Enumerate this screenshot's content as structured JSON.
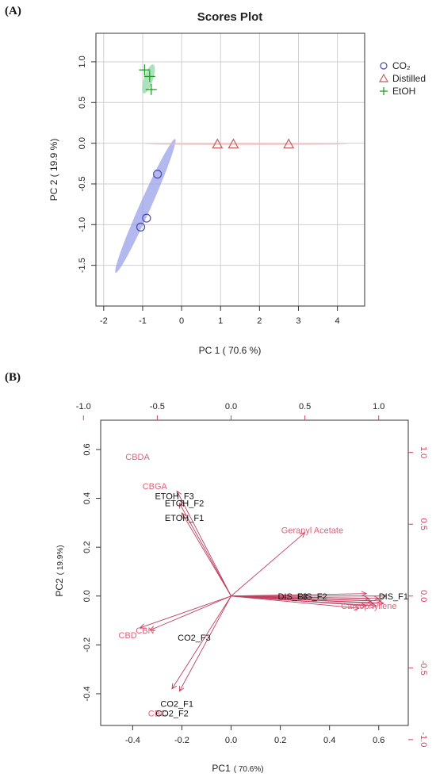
{
  "panel_a": {
    "panel_label": "(A)",
    "colors": {
      "co2": "#4a4ab0",
      "distilled": "#c06060",
      "etoh": "#2a9a2a",
      "co2_ellipse": "#9aa0e8",
      "etoh_ellipse": "#8fd8a8",
      "distilled_ellipse": "#f0c0c0",
      "grid": "#cfcfcf"
    }
  },
  "panel_b": {
    "panel_label": "(B)",
    "colors": {
      "arrow": "#c04060",
      "var_text": "#e0607a",
      "obs_text": "#111111",
      "right_ticks": "#d6405a"
    }
  },
  "chart_data": [
    {
      "type": "scatter",
      "title": "Scores Plot",
      "xlabel": "PC 1 ( 70.6 %)",
      "ylabel": "PC 2 ( 19.9 %)",
      "xlim": [
        -2.2,
        4.7
      ],
      "ylim": [
        -2.0,
        1.35
      ],
      "xticks": [
        -2,
        -1,
        0,
        1,
        2,
        3,
        4
      ],
      "yticks": [
        1.0,
        0.5,
        0.0,
        -0.5,
        -1.0,
        -1.5
      ],
      "xtick_labels": [
        "-2",
        "-1",
        "0",
        "1",
        "2",
        "3",
        "4"
      ],
      "ytick_labels": [
        "1.0",
        "0.5",
        "0.0",
        "-0.5",
        "-1.0",
        "-1.5"
      ],
      "grid": true,
      "legend_position": "top-right",
      "series": [
        {
          "name": "CO₂",
          "marker": "circle",
          "x": [
            -0.62,
            -0.9,
            -1.05
          ],
          "y": [
            -0.38,
            -0.92,
            -1.03
          ]
        },
        {
          "name": "Distilled",
          "marker": "triangle",
          "x": [
            0.92,
            1.33,
            2.75
          ],
          "y": [
            -0.01,
            -0.01,
            -0.01
          ]
        },
        {
          "name": "EtOH",
          "marker": "plus",
          "x": [
            -0.95,
            -0.82,
            -0.78
          ],
          "y": [
            0.9,
            0.82,
            0.66
          ]
        }
      ],
      "ellipses": [
        {
          "series": "CO₂",
          "cx": -0.93,
          "cy": -0.77,
          "rx": 1.3,
          "ry": 0.1,
          "angle": 66
        },
        {
          "series": "EtOH",
          "cx": -0.85,
          "cy": 0.79,
          "rx": 0.27,
          "ry": 0.08,
          "angle": 72
        },
        {
          "series": "Distilled",
          "cx": 1.67,
          "cy": -0.01,
          "rx": 1.8,
          "ry": 0.02,
          "angle": 0
        }
      ]
    },
    {
      "type": "biplot",
      "xlabel": "PC1",
      "xlabel_note": "( 70.6%)",
      "ylabel": "PC2",
      "ylabel_note": "( 19.9%)",
      "xlim": [
        -0.53,
        0.72
      ],
      "ylim": [
        -0.53,
        0.72
      ],
      "xticks": [
        -0.4,
        -0.2,
        0.0,
        0.2,
        0.4,
        0.6
      ],
      "yticks": [
        0.6,
        0.4,
        0.2,
        0.0,
        -0.2,
        -0.4
      ],
      "xtick_labels": [
        "-0.4",
        "-0.2",
        "0.0",
        "0.2",
        "0.4",
        "0.6"
      ],
      "ytick_labels": [
        "0.6",
        "0.4",
        "0.2",
        "0.0",
        "-0.2",
        "-0.4"
      ],
      "top_ticks": [
        -1.0,
        -0.5,
        0.0,
        0.5,
        1.0
      ],
      "top_tick_labels": [
        "-1.0",
        "-0.5",
        "0.0",
        "0.5",
        "1.0"
      ],
      "right_ticks": [
        1.0,
        0.5,
        0.0,
        -0.5,
        -1.0
      ],
      "right_tick_labels": [
        "1.0",
        "0.5",
        "0.0",
        "-0.5",
        "-1.0"
      ],
      "loadings": [
        {
          "name": "CBDA",
          "x": -0.38,
          "y": 0.57
        },
        {
          "name": "CBGA",
          "x": -0.31,
          "y": 0.45
        },
        {
          "name": "Geranyl Acetate",
          "x": 0.33,
          "y": 0.27
        },
        {
          "name": "Caryophyllene",
          "x": 0.56,
          "y": -0.04
        },
        {
          "name": "CBN",
          "x": -0.35,
          "y": -0.14
        },
        {
          "name": "CBD",
          "x": -0.42,
          "y": -0.16
        },
        {
          "name": "CBC",
          "x": -0.3,
          "y": -0.48
        }
      ],
      "observations": [
        {
          "name": "ETOH_F3",
          "x": -0.23,
          "y": 0.41
        },
        {
          "name": "ETOH_F2",
          "x": -0.19,
          "y": 0.38
        },
        {
          "name": "ETOH_F1",
          "x": -0.19,
          "y": 0.32
        },
        {
          "name": "CO2_F3",
          "x": -0.15,
          "y": -0.17
        },
        {
          "name": "CO2_F1",
          "x": -0.22,
          "y": -0.44
        },
        {
          "name": "CO2_F2",
          "x": -0.24,
          "y": -0.48
        },
        {
          "name": "DIS_F3",
          "x": 0.25,
          "y": 0.0
        },
        {
          "name": "DIS_F2",
          "x": 0.33,
          "y": 0.0
        },
        {
          "name": "DIS_F1",
          "x": 0.66,
          "y": 0.0
        }
      ]
    }
  ]
}
